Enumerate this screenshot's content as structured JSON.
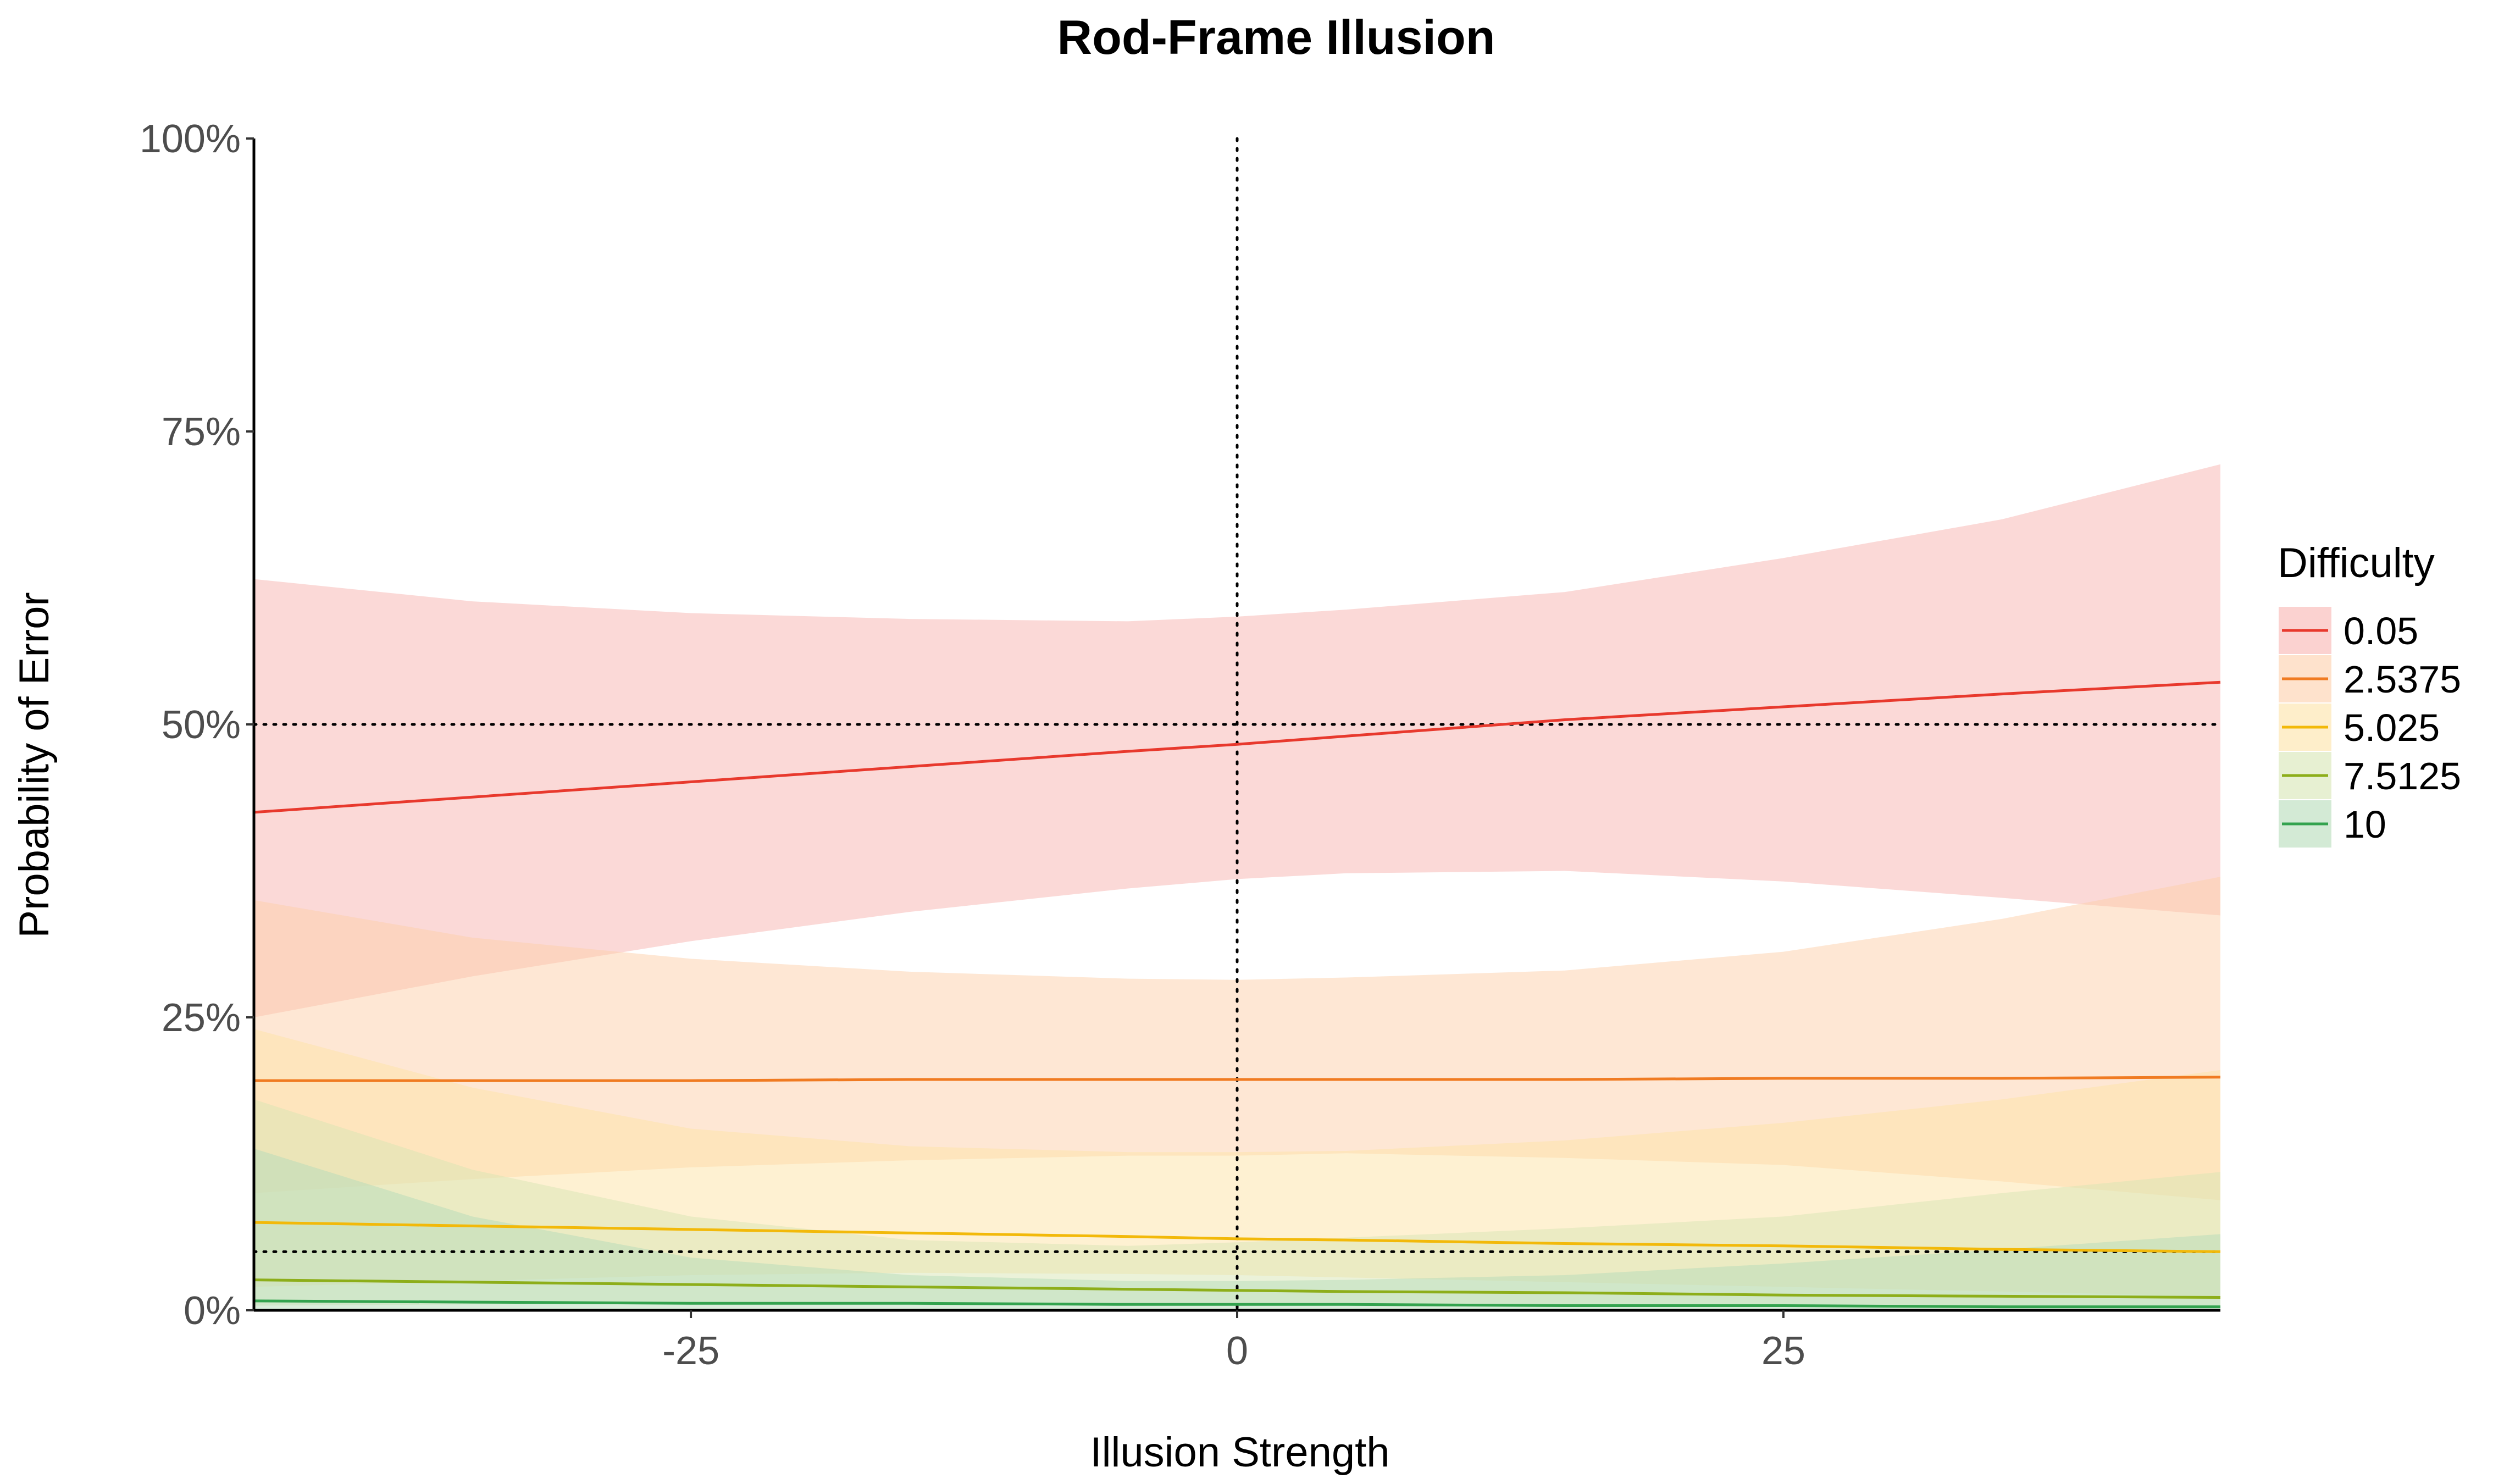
{
  "chart_data": {
    "type": "line",
    "title": "Rod-Frame Illusion",
    "xlabel": "Illusion Strength",
    "ylabel": "Probability of Error",
    "xlim": [
      -45,
      45
    ],
    "ylim": [
      0,
      1
    ],
    "x_ticks": [
      -25,
      0,
      25
    ],
    "x_tick_labels": [
      "-25",
      "0",
      "25"
    ],
    "y_ticks": [
      0,
      0.25,
      0.5,
      0.75,
      1
    ],
    "y_tick_labels": [
      "0%",
      "25%",
      "50%",
      "75%",
      "100%"
    ],
    "grid": false,
    "reference_lines": {
      "vertical_x": 0,
      "horizontal_y": [
        0.5,
        0.05
      ],
      "style": "dotted"
    },
    "legend": {
      "title": "Difficulty",
      "position": "right"
    },
    "x": [
      -45,
      -35,
      -25,
      -15,
      -5,
      0,
      5,
      15,
      25,
      35,
      45
    ],
    "series": [
      {
        "name": "0.05",
        "color": "#e8392d",
        "fill": "#f8b4b0",
        "values": [
          0.425,
          0.438,
          0.451,
          0.464,
          0.477,
          0.483,
          0.49,
          0.504,
          0.515,
          0.526,
          0.536
        ],
        "lower": [
          0.25,
          0.285,
          0.315,
          0.34,
          0.36,
          0.368,
          0.373,
          0.375,
          0.366,
          0.352,
          0.337
        ],
        "upper": [
          0.624,
          0.605,
          0.595,
          0.59,
          0.588,
          0.592,
          0.598,
          0.613,
          0.642,
          0.675,
          0.722
        ]
      },
      {
        "name": "2.5375",
        "color": "#f07b22",
        "fill": "#fdcfaa",
        "values": [
          0.196,
          0.196,
          0.196,
          0.197,
          0.197,
          0.197,
          0.197,
          0.197,
          0.198,
          0.198,
          0.199
        ],
        "lower": [
          0.1,
          0.112,
          0.122,
          0.128,
          0.132,
          0.132,
          0.134,
          0.13,
          0.124,
          0.11,
          0.094
        ],
        "upper": [
          0.35,
          0.318,
          0.3,
          0.289,
          0.283,
          0.282,
          0.284,
          0.29,
          0.306,
          0.334,
          0.37
        ]
      },
      {
        "name": "5.025",
        "color": "#f2b90a",
        "fill": "#fde3a6",
        "values": [
          0.075,
          0.072,
          0.069,
          0.066,
          0.063,
          0.061,
          0.06,
          0.057,
          0.055,
          0.052,
          0.05
        ],
        "lower": [
          0.02,
          0.025,
          0.03,
          0.032,
          0.031,
          0.03,
          0.028,
          0.024,
          0.02,
          0.016,
          0.012
        ],
        "upper": [
          0.24,
          0.19,
          0.155,
          0.14,
          0.135,
          0.135,
          0.136,
          0.145,
          0.16,
          0.18,
          0.205
        ]
      },
      {
        "name": "7.5125",
        "color": "#8dae1a",
        "fill": "#d7e6b4",
        "values": [
          0.026,
          0.024,
          0.022,
          0.02,
          0.018,
          0.017,
          0.016,
          0.015,
          0.013,
          0.012,
          0.011
        ],
        "lower": [
          0.004,
          0.005,
          0.006,
          0.006,
          0.006,
          0.006,
          0.006,
          0.005,
          0.004,
          0.003,
          0.002
        ],
        "upper": [
          0.18,
          0.12,
          0.08,
          0.06,
          0.055,
          0.058,
          0.062,
          0.07,
          0.08,
          0.1,
          0.118
        ]
      },
      {
        "name": "10",
        "color": "#33a34e",
        "fill": "#b5dcb9",
        "values": [
          0.008,
          0.007,
          0.006,
          0.006,
          0.005,
          0.005,
          0.005,
          0.004,
          0.004,
          0.003,
          0.003
        ],
        "lower": [
          0.0005,
          0.0006,
          0.0007,
          0.0008,
          0.0008,
          0.0008,
          0.0008,
          0.0007,
          0.0006,
          0.0005,
          0.0004
        ],
        "upper": [
          0.138,
          0.08,
          0.045,
          0.03,
          0.025,
          0.025,
          0.026,
          0.03,
          0.04,
          0.052,
          0.065
        ]
      }
    ]
  }
}
